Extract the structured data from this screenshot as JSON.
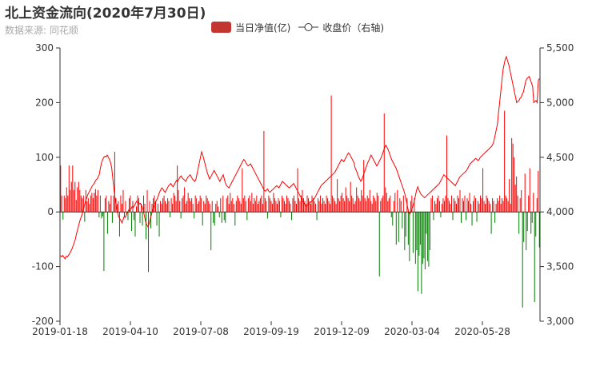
{
  "title": "北上资金流向(2020年7月30日)",
  "subtitle": "数据来源: 同花顺",
  "colors": {
    "positive": "#ff0000",
    "negative": "#008000",
    "line": "#ff0000",
    "legend_bar": "#c23531",
    "axis": "#333333",
    "grid": "#e5e5e5"
  },
  "legend": [
    {
      "label": "当日净值(亿)",
      "icon": "bar-swatch-icon"
    },
    {
      "label": "收盘价（右轴)",
      "icon": "line-circle-icon"
    }
  ],
  "chart_data": {
    "type": "bar",
    "x_ticks": [
      "2019-01-18",
      "2019-04-10",
      "2019-07-08",
      "2019-09-19",
      "2019-12-09",
      "2020-03-04",
      "2020-05-28"
    ],
    "y_left": {
      "min": -200,
      "max": 300,
      "ticks": [
        "300",
        "200",
        "100",
        "0",
        "-100",
        "-200"
      ]
    },
    "y_right": {
      "min": 3000,
      "max": 5500,
      "ticks": [
        "5,500",
        "5,000",
        "4,500",
        "4,000",
        "3,500",
        "3,000"
      ]
    },
    "series": [
      {
        "name": "当日净值(亿)",
        "axis": "left",
        "values": [
          85,
          30,
          -14,
          30,
          25,
          45,
          30,
          85,
          40,
          55,
          85,
          40,
          55,
          22,
          45,
          55,
          40,
          30,
          25,
          30,
          -18,
          40,
          20,
          25,
          15,
          30,
          35,
          25,
          35,
          42,
          30,
          40,
          -10,
          30,
          -12,
          -8,
          -108,
          25,
          30,
          -40,
          20,
          15,
          30,
          -20,
          30,
          110,
          25,
          15,
          20,
          -45,
          30,
          15,
          40,
          -10,
          20,
          -5,
          -15,
          25,
          30,
          -35,
          20,
          -15,
          -45,
          10,
          30,
          25,
          -20,
          15,
          -25,
          30,
          15,
          -50,
          40,
          -110,
          20,
          -30,
          15,
          25,
          30,
          20,
          -25,
          15,
          -45,
          20,
          15,
          25,
          30,
          20,
          15,
          25,
          20,
          -10,
          25,
          15,
          35,
          30,
          20,
          85,
          40,
          20,
          -12,
          25,
          30,
          45,
          15,
          20,
          35,
          25,
          20,
          25,
          15,
          -12,
          30,
          25,
          15,
          20,
          30,
          25,
          -25,
          20,
          15,
          30,
          25,
          20,
          15,
          -70,
          20,
          -20,
          -25,
          15,
          20,
          10,
          -10,
          25,
          -20,
          30,
          -15,
          -20,
          25,
          30,
          15,
          35,
          20,
          25,
          15,
          -25,
          20,
          30,
          25,
          20,
          15,
          80,
          25,
          30,
          20,
          -15,
          25,
          30,
          20,
          35,
          15,
          25,
          20,
          30,
          15,
          20,
          25,
          30,
          15,
          148,
          25,
          20,
          -12,
          30,
          25,
          20,
          15,
          35,
          25,
          20,
          15,
          25,
          20,
          -10,
          30,
          25,
          20,
          15,
          30,
          25,
          20,
          15,
          -15,
          25,
          30,
          20,
          15,
          80,
          25,
          20,
          30,
          40,
          25,
          20,
          15,
          30,
          25,
          20,
          15,
          30,
          25,
          20,
          15,
          -15,
          25,
          20,
          30,
          15,
          25,
          20,
          15,
          30,
          25,
          20,
          15,
          213,
          30,
          25,
          20,
          15,
          60,
          25,
          20,
          30,
          35,
          25,
          20,
          45,
          30,
          25,
          20,
          55,
          30,
          25,
          15,
          20,
          45,
          30,
          25,
          20,
          40,
          30,
          95,
          25,
          20,
          30,
          25,
          40,
          20,
          15,
          30,
          25,
          20,
          35,
          30,
          -118,
          20,
          25,
          30,
          180,
          45,
          35,
          20,
          25,
          30,
          -10,
          -25,
          20,
          35,
          -60,
          40,
          -55,
          25,
          20,
          -30,
          30,
          -70,
          -45,
          25,
          -60,
          -90,
          20,
          30,
          -75,
          25,
          -95,
          -70,
          -145,
          -80,
          -60,
          -150,
          -95,
          -85,
          -105,
          -40,
          -90,
          -100,
          -70,
          25,
          30,
          -15,
          20,
          15,
          25,
          30,
          20,
          -10,
          15,
          25,
          20,
          30,
          140,
          25,
          20,
          15,
          30,
          -15,
          25,
          20,
          15,
          30,
          25,
          40,
          -20,
          25,
          20,
          30,
          -15,
          25,
          20,
          35,
          15,
          -25,
          20,
          30,
          25,
          -18,
          20,
          15,
          30,
          25,
          80,
          20,
          15,
          30,
          25,
          20,
          15,
          -40,
          25,
          20,
          -20,
          15,
          25,
          20,
          30,
          15,
          25,
          20,
          185,
          30,
          25,
          20,
          60,
          15,
          135,
          125,
          100,
          50,
          65,
          30,
          -40,
          25,
          40,
          -175,
          -55,
          70,
          -70,
          -35,
          30,
          80,
          -40,
          -20,
          35,
          -165,
          -45,
          25,
          75,
          -65
        ]
      },
      {
        "name": "收盘价（右轴)",
        "axis": "right",
        "values": [
          3600,
          3590,
          3602,
          3585,
          3570,
          3595,
          3588,
          3605,
          3620,
          3640,
          3660,
          3690,
          3720,
          3750,
          3800,
          3840,
          3880,
          3920,
          3950,
          3980,
          4020,
          4060,
          4100,
          4130,
          4160,
          4180,
          4200,
          4220,
          4240,
          4250,
          4270,
          4290,
          4300,
          4320,
          4340,
          4400,
          4450,
          4480,
          4500,
          4510,
          4505,
          4520,
          4500,
          4480,
          4450,
          4400,
          4300,
          4200,
          4120,
          4050,
          4000,
          3960,
          3940,
          3920,
          3900,
          3930,
          3960,
          3950,
          3980,
          4000,
          4020,
          4010,
          4030,
          4050,
          4040,
          4060,
          4080,
          4100,
          4090,
          4070,
          4080,
          4060,
          4040,
          4000,
          3950,
          3900,
          3880,
          3860,
          3900,
          3940,
          3980,
          4020,
          4050,
          4080,
          4100,
          4120,
          4150,
          4180,
          4200,
          4220,
          4210,
          4190,
          4180,
          4200,
          4220,
          4240,
          4250,
          4260,
          4240,
          4230,
          4250,
          4270,
          4290,
          4280,
          4300,
          4320,
          4330,
          4310,
          4300,
          4290,
          4280,
          4300,
          4320,
          4330,
          4340,
          4320,
          4300,
          4290,
          4280,
          4300,
          4350,
          4400,
          4450,
          4500,
          4550,
          4520,
          4480,
          4440,
          4400,
          4360,
          4330,
          4300,
          4320,
          4340,
          4360,
          4380,
          4360,
          4340,
          4320,
          4300,
          4280,
          4300,
          4320,
          4340,
          4300,
          4260,
          4240,
          4230,
          4220,
          4240,
          4260,
          4280,
          4300,
          4320,
          4340,
          4360,
          4380,
          4400,
          4420,
          4440,
          4460,
          4480,
          4470,
          4450,
          4430,
          4420,
          4430,
          4440,
          4420,
          4400,
          4380,
          4360,
          4340,
          4320,
          4300,
          4280,
          4260,
          4240,
          4220,
          4200,
          4190,
          4200,
          4210,
          4190,
          4180,
          4190,
          4200,
          4210,
          4220,
          4230,
          4240,
          4230,
          4220,
          4240,
          4260,
          4280,
          4270,
          4260,
          4250,
          4240,
          4230,
          4220,
          4230,
          4240,
          4250,
          4260,
          4240,
          4220,
          4200,
          4180,
          4160,
          4140,
          4120,
          4100,
          4080,
          4060,
          4050,
          4060,
          4070,
          4080,
          4090,
          4100,
          4110,
          4120,
          4140,
          4160,
          4180,
          4200,
          4220,
          4240,
          4250,
          4260,
          4270,
          4280,
          4290,
          4300,
          4310,
          4320,
          4330,
          4340,
          4350,
          4360,
          4380,
          4400,
          4420,
          4440,
          4460,
          4480,
          4470,
          4460,
          4480,
          4500,
          4520,
          4540,
          4530,
          4510,
          4490,
          4470,
          4450,
          4400,
          4380,
          4350,
          4320,
          4300,
          4280,
          4300,
          4330,
          4360,
          4390,
          4420,
          4450,
          4470,
          4500,
          4520,
          4500,
          4480,
          4460,
          4440,
          4420,
          4440,
          4460,
          4480,
          4500,
          4530,
          4560,
          4590,
          4610,
          4590,
          4570,
          4540,
          4510,
          4480,
          4460,
          4440,
          4420,
          4400,
          4370,
          4340,
          4310,
          4280,
          4250,
          4220,
          4190,
          4150,
          4100,
          4050,
          4000,
          3980,
          4000,
          4030,
          4060,
          4100,
          4150,
          4200,
          4230,
          4200,
          4180,
          4160,
          4150,
          4140,
          4130,
          4140,
          4150,
          4160,
          4170,
          4180,
          4190,
          4200,
          4210,
          4220,
          4230,
          4240,
          4250,
          4260,
          4280,
          4300,
          4320,
          4340,
          4330,
          4320,
          4310,
          4300,
          4290,
          4280,
          4270,
          4260,
          4250,
          4240,
          4260,
          4280,
          4300,
          4320,
          4330,
          4340,
          4350,
          4360,
          4370,
          4380,
          4400,
          4420,
          4440,
          4450,
          4460,
          4470,
          4480,
          4490,
          4480,
          4470,
          4480,
          4500,
          4510,
          4520,
          4530,
          4540,
          4550,
          4560,
          4570,
          4580,
          4590,
          4600,
          4620,
          4650,
          4700,
          4750,
          4800,
          4900,
          5000,
          5100,
          5200,
          5300,
          5350,
          5400,
          5420,
          5380,
          5350,
          5300,
          5250,
          5200,
          5150,
          5100,
          5050,
          5000,
          5010,
          5020,
          5040,
          5050,
          5080,
          5100,
          5150,
          5200,
          5220,
          5230,
          5240,
          5210,
          5180,
          5150,
          5000,
          5010,
          5020,
          5000,
          5200,
          5220
        ]
      }
    ]
  }
}
